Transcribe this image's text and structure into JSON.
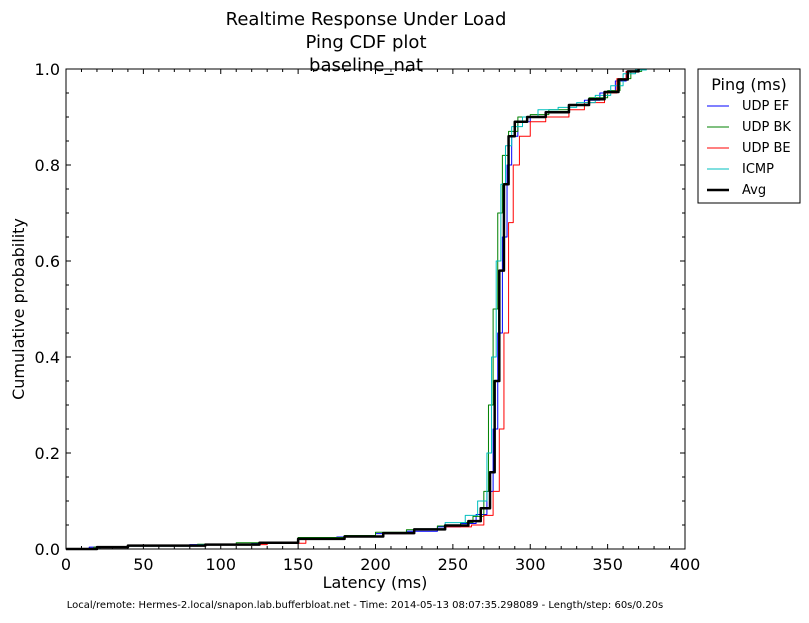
{
  "chart_data": {
    "type": "line",
    "title_lines": [
      "Realtime Response Under Load",
      "Ping CDF plot",
      "baseline_nat"
    ],
    "xlabel": "Latency (ms)",
    "ylabel": "Cumulative probability",
    "xlim": [
      0,
      400
    ],
    "ylim": [
      0,
      1
    ],
    "xticks": [
      0,
      50,
      100,
      150,
      200,
      250,
      300,
      350,
      400
    ],
    "yticks": [
      0.0,
      0.2,
      0.4,
      0.6,
      0.8,
      1.0
    ],
    "xtick_labels": [
      "0",
      "50",
      "100",
      "150",
      "200",
      "250",
      "300",
      "350",
      "400"
    ],
    "ytick_labels": [
      "0.0",
      "0.2",
      "0.4",
      "0.6",
      "0.8",
      "1.0"
    ],
    "grid": false,
    "legend": {
      "title": "Ping (ms)",
      "placement": "outside-top-right"
    },
    "series": [
      {
        "name": "UDP EF",
        "color": "#0000ff",
        "points": [
          [
            0,
            0
          ],
          [
            15,
            0.004
          ],
          [
            40,
            0.007
          ],
          [
            80,
            0.009
          ],
          [
            120,
            0.012
          ],
          [
            150,
            0.02
          ],
          [
            175,
            0.025
          ],
          [
            200,
            0.032
          ],
          [
            220,
            0.037
          ],
          [
            240,
            0.046
          ],
          [
            255,
            0.053
          ],
          [
            265,
            0.072
          ],
          [
            272,
            0.12
          ],
          [
            276,
            0.25
          ],
          [
            279,
            0.45
          ],
          [
            282,
            0.65
          ],
          [
            285,
            0.8
          ],
          [
            288,
            0.86
          ],
          [
            292,
            0.89
          ],
          [
            300,
            0.9
          ],
          [
            310,
            0.91
          ],
          [
            325,
            0.925
          ],
          [
            335,
            0.935
          ],
          [
            345,
            0.95
          ],
          [
            355,
            0.975
          ],
          [
            362,
            0.995
          ],
          [
            370,
            1.0
          ]
        ]
      },
      {
        "name": "UDP BK",
        "color": "#008000",
        "points": [
          [
            0,
            0
          ],
          [
            18,
            0.004
          ],
          [
            40,
            0.008
          ],
          [
            85,
            0.01
          ],
          [
            110,
            0.013
          ],
          [
            150,
            0.024
          ],
          [
            180,
            0.028
          ],
          [
            200,
            0.035
          ],
          [
            220,
            0.04
          ],
          [
            240,
            0.048
          ],
          [
            255,
            0.055
          ],
          [
            263,
            0.068
          ],
          [
            270,
            0.12
          ],
          [
            273,
            0.3
          ],
          [
            276,
            0.5
          ],
          [
            279,
            0.7
          ],
          [
            282,
            0.82
          ],
          [
            286,
            0.87
          ],
          [
            292,
            0.9
          ],
          [
            300,
            0.905
          ],
          [
            312,
            0.915
          ],
          [
            325,
            0.925
          ],
          [
            338,
            0.94
          ],
          [
            350,
            0.955
          ],
          [
            358,
            0.98
          ],
          [
            365,
            0.995
          ],
          [
            372,
            1.0
          ]
        ]
      },
      {
        "name": "UDP BE",
        "color": "#ff0000",
        "points": [
          [
            0,
            0
          ],
          [
            20,
            0.005
          ],
          [
            40,
            0.007
          ],
          [
            90,
            0.009
          ],
          [
            130,
            0.012
          ],
          [
            155,
            0.02
          ],
          [
            180,
            0.027
          ],
          [
            205,
            0.032
          ],
          [
            225,
            0.04
          ],
          [
            245,
            0.046
          ],
          [
            262,
            0.05
          ],
          [
            270,
            0.07
          ],
          [
            276,
            0.12
          ],
          [
            280,
            0.25
          ],
          [
            283,
            0.45
          ],
          [
            286,
            0.68
          ],
          [
            289,
            0.8
          ],
          [
            293,
            0.86
          ],
          [
            300,
            0.89
          ],
          [
            310,
            0.9
          ],
          [
            325,
            0.915
          ],
          [
            335,
            0.93
          ],
          [
            348,
            0.95
          ],
          [
            356,
            0.98
          ],
          [
            362,
            0.995
          ],
          [
            368,
            1.0
          ]
        ]
      },
      {
        "name": "ICMP",
        "color": "#00bfbf",
        "points": [
          [
            0,
            0
          ],
          [
            22,
            0.003
          ],
          [
            40,
            0.006
          ],
          [
            85,
            0.009
          ],
          [
            125,
            0.013
          ],
          [
            150,
            0.02
          ],
          [
            180,
            0.025
          ],
          [
            205,
            0.033
          ],
          [
            225,
            0.042
          ],
          [
            245,
            0.055
          ],
          [
            258,
            0.07
          ],
          [
            266,
            0.1
          ],
          [
            272,
            0.2
          ],
          [
            275,
            0.4
          ],
          [
            278,
            0.6
          ],
          [
            281,
            0.76
          ],
          [
            284,
            0.84
          ],
          [
            288,
            0.88
          ],
          [
            295,
            0.9
          ],
          [
            305,
            0.915
          ],
          [
            318,
            0.92
          ],
          [
            330,
            0.93
          ],
          [
            342,
            0.945
          ],
          [
            352,
            0.965
          ],
          [
            360,
            0.99
          ],
          [
            368,
            0.998
          ],
          [
            375,
            1.0
          ]
        ]
      },
      {
        "name": "Avg",
        "color": "#000000",
        "points": [
          [
            0,
            0
          ],
          [
            20,
            0.004
          ],
          [
            40,
            0.007
          ],
          [
            90,
            0.009
          ],
          [
            125,
            0.013
          ],
          [
            150,
            0.021
          ],
          [
            180,
            0.026
          ],
          [
            205,
            0.033
          ],
          [
            225,
            0.041
          ],
          [
            245,
            0.049
          ],
          [
            260,
            0.058
          ],
          [
            268,
            0.085
          ],
          [
            274,
            0.16
          ],
          [
            277,
            0.35
          ],
          [
            280,
            0.58
          ],
          [
            283,
            0.76
          ],
          [
            286,
            0.86
          ],
          [
            290,
            0.89
          ],
          [
            298,
            0.9
          ],
          [
            310,
            0.91
          ],
          [
            325,
            0.925
          ],
          [
            338,
            0.937
          ],
          [
            348,
            0.952
          ],
          [
            357,
            0.978
          ],
          [
            363,
            0.995
          ],
          [
            370,
            1.0
          ]
        ]
      }
    ],
    "footer": "Local/remote: Hermes-2.local/snapon.lab.bufferbloat.net - Time: 2014-05-13 08:07:35.298089 - Length/step: 60s/0.20s"
  }
}
